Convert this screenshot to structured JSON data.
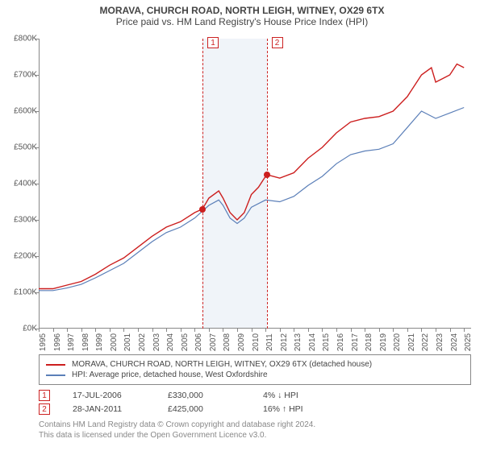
{
  "title": "MORAVA, CHURCH ROAD, NORTH LEIGH, WITNEY, OX29 6TX",
  "subtitle": "Price paid vs. HM Land Registry's House Price Index (HPI)",
  "chart": {
    "type": "line",
    "background_color": "#ffffff",
    "axis_color": "#888888",
    "tick_font_size": 10,
    "x": {
      "min": 1995,
      "max": 2025.5,
      "ticks": [
        1995,
        1996,
        1997,
        1998,
        1999,
        2000,
        2001,
        2002,
        2003,
        2004,
        2005,
        2006,
        2007,
        2008,
        2009,
        2010,
        2011,
        2012,
        2013,
        2014,
        2015,
        2016,
        2017,
        2018,
        2019,
        2020,
        2021,
        2022,
        2023,
        2024,
        2025
      ]
    },
    "y": {
      "min": 0,
      "max": 800000,
      "step": 100000,
      "label_prefix": "£",
      "label_suffix": "K",
      "label_scale": 1000
    },
    "band": {
      "from": 2006.55,
      "to": 2011.08,
      "color": "rgba(70,110,180,0.08)"
    },
    "markers": [
      {
        "n": "1",
        "x": 2006.55,
        "date": "17-JUL-2006",
        "price": "£330,000",
        "delta": "4% ↓ HPI",
        "y": 330000
      },
      {
        "n": "2",
        "x": 2011.08,
        "date": "28-JAN-2011",
        "price": "£425,000",
        "delta": "16% ↑ HPI",
        "y": 425000
      }
    ],
    "series": [
      {
        "name": "MORAVA, CHURCH ROAD, NORTH LEIGH, WITNEY, OX29 6TX (detached house)",
        "color": "#cc1e1e",
        "width": 1.4,
        "points": [
          [
            1995,
            110000
          ],
          [
            1996,
            110000
          ],
          [
            1997,
            120000
          ],
          [
            1998,
            130000
          ],
          [
            1999,
            150000
          ],
          [
            2000,
            175000
          ],
          [
            2001,
            195000
          ],
          [
            2002,
            225000
          ],
          [
            2003,
            255000
          ],
          [
            2004,
            280000
          ],
          [
            2005,
            295000
          ],
          [
            2006,
            320000
          ],
          [
            2006.55,
            330000
          ],
          [
            2007,
            360000
          ],
          [
            2007.7,
            380000
          ],
          [
            2008,
            360000
          ],
          [
            2008.5,
            320000
          ],
          [
            2009,
            300000
          ],
          [
            2009.5,
            320000
          ],
          [
            2010,
            370000
          ],
          [
            2010.5,
            390000
          ],
          [
            2011.08,
            425000
          ],
          [
            2012,
            415000
          ],
          [
            2013,
            430000
          ],
          [
            2014,
            470000
          ],
          [
            2015,
            500000
          ],
          [
            2016,
            540000
          ],
          [
            2017,
            570000
          ],
          [
            2018,
            580000
          ],
          [
            2019,
            585000
          ],
          [
            2020,
            600000
          ],
          [
            2021,
            640000
          ],
          [
            2022,
            700000
          ],
          [
            2022.7,
            720000
          ],
          [
            2023,
            680000
          ],
          [
            2023.5,
            690000
          ],
          [
            2024,
            700000
          ],
          [
            2024.5,
            730000
          ],
          [
            2025,
            720000
          ]
        ]
      },
      {
        "name": "HPI: Average price, detached house, West Oxfordshire",
        "color": "#5b7fb8",
        "width": 1.2,
        "points": [
          [
            1995,
            105000
          ],
          [
            1996,
            105000
          ],
          [
            1997,
            112000
          ],
          [
            1998,
            122000
          ],
          [
            1999,
            140000
          ],
          [
            2000,
            160000
          ],
          [
            2001,
            180000
          ],
          [
            2002,
            210000
          ],
          [
            2003,
            240000
          ],
          [
            2004,
            265000
          ],
          [
            2005,
            280000
          ],
          [
            2006,
            305000
          ],
          [
            2007,
            340000
          ],
          [
            2007.7,
            355000
          ],
          [
            2008,
            340000
          ],
          [
            2008.5,
            305000
          ],
          [
            2009,
            290000
          ],
          [
            2009.5,
            305000
          ],
          [
            2010,
            335000
          ],
          [
            2011,
            355000
          ],
          [
            2012,
            350000
          ],
          [
            2013,
            365000
          ],
          [
            2014,
            395000
          ],
          [
            2015,
            420000
          ],
          [
            2016,
            455000
          ],
          [
            2017,
            480000
          ],
          [
            2018,
            490000
          ],
          [
            2019,
            495000
          ],
          [
            2020,
            510000
          ],
          [
            2021,
            555000
          ],
          [
            2022,
            600000
          ],
          [
            2023,
            580000
          ],
          [
            2024,
            595000
          ],
          [
            2025,
            610000
          ]
        ]
      }
    ]
  },
  "legend": {
    "s1": "MORAVA, CHURCH ROAD, NORTH LEIGH, WITNEY, OX29 6TX (detached house)",
    "s2": "HPI: Average price, detached house, West Oxfordshire"
  },
  "attribution": {
    "l1": "Contains HM Land Registry data © Crown copyright and database right 2024.",
    "l2": "This data is licensed under the Open Government Licence v3.0."
  }
}
